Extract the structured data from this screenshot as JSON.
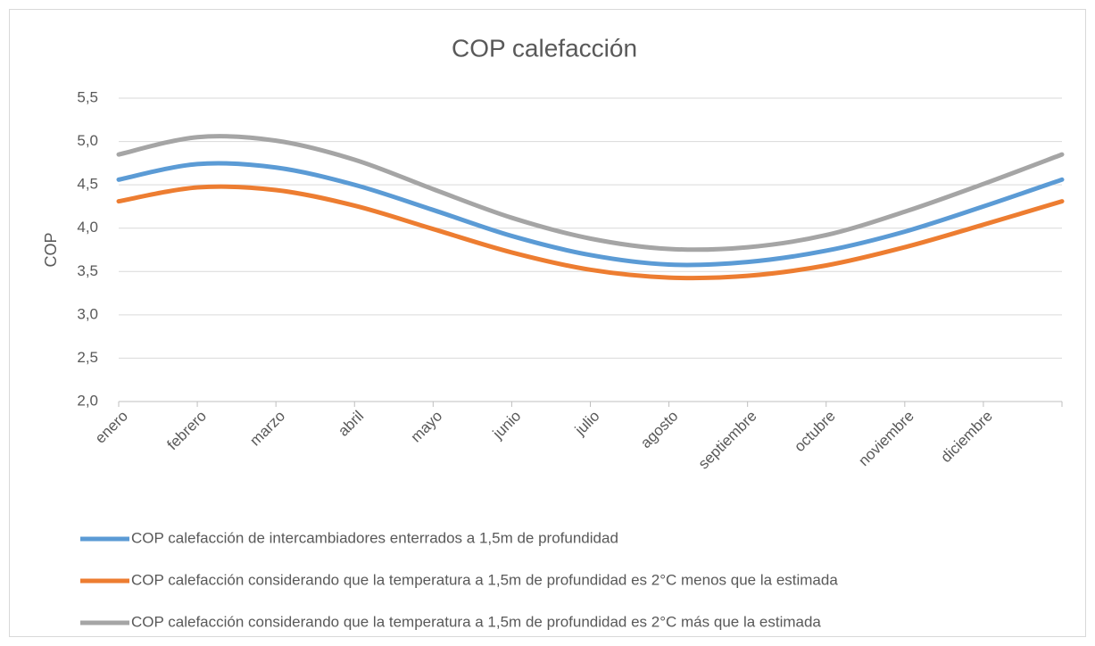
{
  "chart_data": {
    "type": "line",
    "title": "COP calefacción",
    "y_label": "COP",
    "categories": [
      "enero",
      "febrero",
      "marzo",
      "abril",
      "mayo",
      "junio",
      "julio",
      "agosto",
      "septiembre",
      "octubre",
      "noviembre",
      "diciembre",
      null
    ],
    "series": [
      {
        "name": "COP calefacción  de intercambiadores enterrados a 1,5m de profundidad",
        "color": "#5b9bd5",
        "values": [
          4.56,
          4.74,
          4.7,
          4.5,
          4.21,
          3.91,
          3.69,
          3.58,
          3.61,
          3.74,
          3.96,
          4.25,
          4.56
        ]
      },
      {
        "name": "COP calefacción considerando que la temperatura a 1,5m de profundidad es 2°C menos que la estimada",
        "color": "#ed7d31",
        "values": [
          4.31,
          4.47,
          4.44,
          4.26,
          3.99,
          3.72,
          3.52,
          3.43,
          3.45,
          3.57,
          3.78,
          4.04,
          4.31
        ]
      },
      {
        "name": "COP calefacción considerando que la temperatura a 1,5m de profundidad es 2°C más que la estimada",
        "color": "#a5a5a5",
        "values": [
          4.85,
          5.05,
          5.01,
          4.79,
          4.45,
          4.12,
          3.88,
          3.76,
          3.78,
          3.92,
          4.19,
          4.51,
          4.85
        ]
      }
    ],
    "ylim": [
      2,
      5.5
    ],
    "yticks": [
      {
        "value": 2,
        "label": "2,0"
      },
      {
        "value": 2.5,
        "label": "2,5"
      },
      {
        "value": 3,
        "label": "3,0"
      },
      {
        "value": 3.5,
        "label": "3,5"
      },
      {
        "value": 4,
        "label": "4,0"
      },
      {
        "value": 4.5,
        "label": "4,5"
      },
      {
        "value": 5,
        "label": "5,0"
      },
      {
        "value": 5.5,
        "label": "5,5"
      }
    ],
    "grid": true,
    "legend": "bottom"
  }
}
